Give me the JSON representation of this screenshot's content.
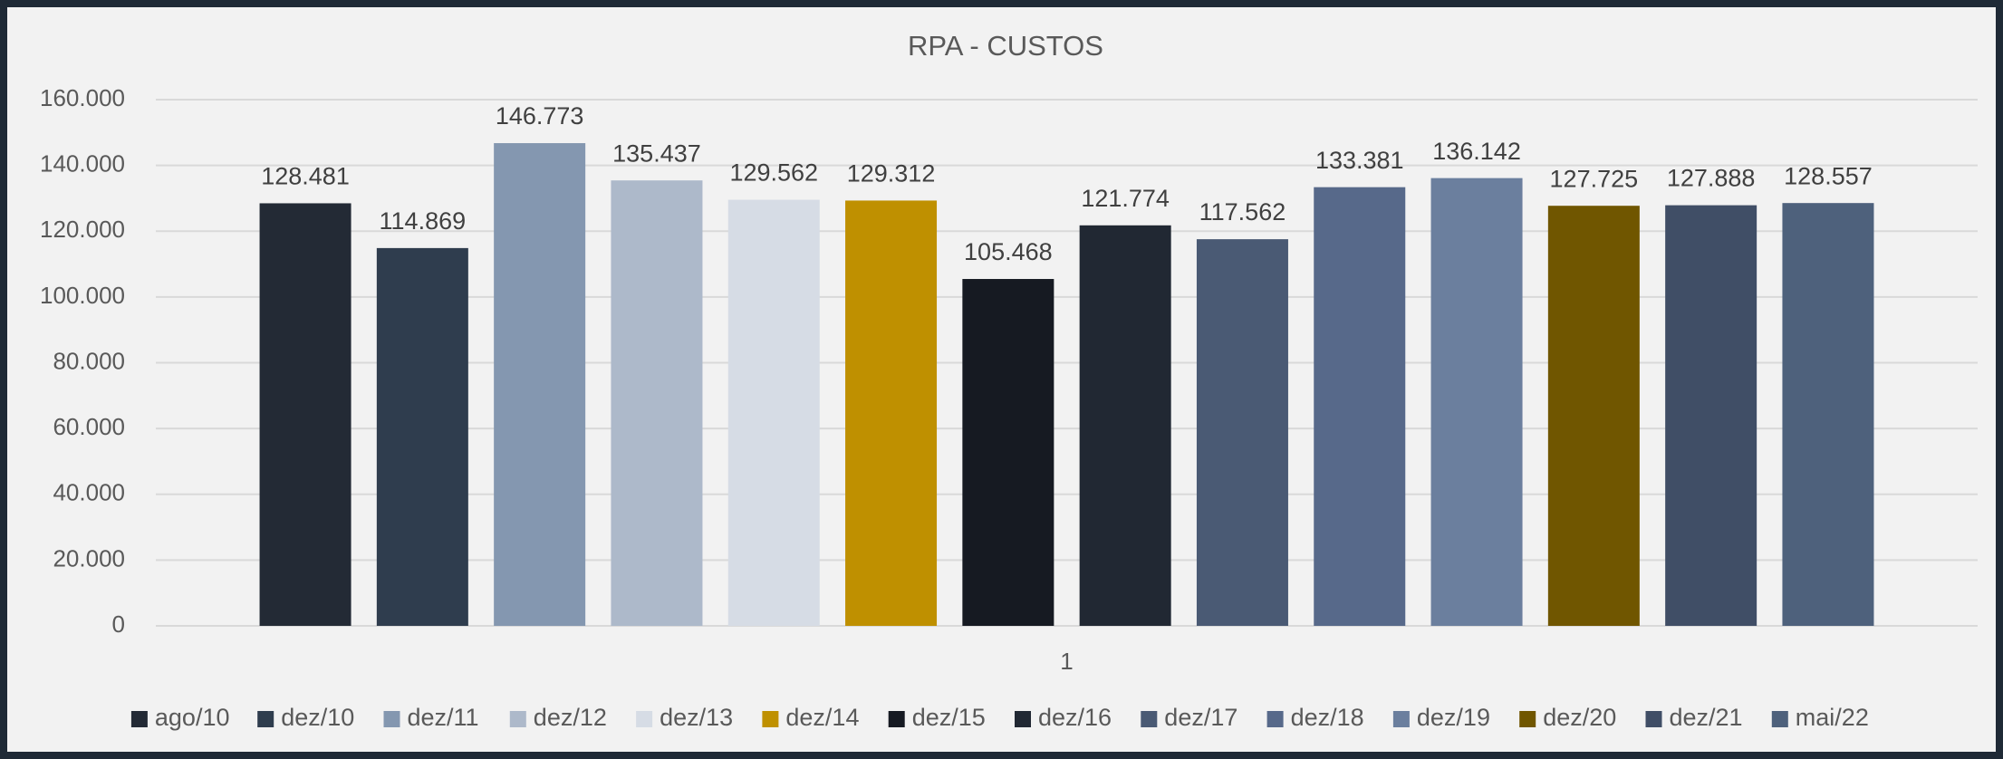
{
  "chart_data": {
    "type": "bar",
    "title": "RPA - CUSTOS",
    "categories": [
      "1"
    ],
    "series": [
      {
        "name": "ago/10",
        "color": "#232a35",
        "values": [
          128481
        ],
        "value_labels": [
          "128.481"
        ]
      },
      {
        "name": "dez/10",
        "color": "#2f3d4e",
        "values": [
          114869
        ],
        "value_labels": [
          "114.869"
        ]
      },
      {
        "name": "dez/11",
        "color": "#8497b0",
        "values": [
          146773
        ],
        "value_labels": [
          "146.773"
        ]
      },
      {
        "name": "dez/12",
        "color": "#adb9ca",
        "values": [
          135437
        ],
        "value_labels": [
          "135.437"
        ]
      },
      {
        "name": "dez/13",
        "color": "#d6dce5",
        "values": [
          129562
        ],
        "value_labels": [
          "129.562"
        ]
      },
      {
        "name": "dez/14",
        "color": "#bf9000",
        "values": [
          129312
        ],
        "value_labels": [
          "129.312"
        ]
      },
      {
        "name": "dez/15",
        "color": "#161a22",
        "values": [
          105468
        ],
        "value_labels": [
          "105.468"
        ]
      },
      {
        "name": "dez/16",
        "color": "#212833",
        "values": [
          121774
        ],
        "value_labels": [
          "121.774"
        ]
      },
      {
        "name": "dez/17",
        "color": "#4a5a74",
        "values": [
          117562
        ],
        "value_labels": [
          "117.562"
        ]
      },
      {
        "name": "dez/18",
        "color": "#57698a",
        "values": [
          133381
        ],
        "value_labels": [
          "133.381"
        ]
      },
      {
        "name": "dez/19",
        "color": "#6b7f9e",
        "values": [
          136142
        ],
        "value_labels": [
          "136.142"
        ]
      },
      {
        "name": "dez/20",
        "color": "#705600",
        "values": [
          127725
        ],
        "value_labels": [
          "127.725"
        ]
      },
      {
        "name": "dez/21",
        "color": "#404e66",
        "values": [
          127888
        ],
        "value_labels": [
          "127.888"
        ]
      },
      {
        "name": "mai/22",
        "color": "#4e617c",
        "values": [
          128557
        ],
        "value_labels": [
          "128.557"
        ]
      }
    ],
    "ylim": [
      0,
      160000
    ],
    "yticks": [
      0,
      {
        "value": 20000,
        "label": "20.000"
      },
      {
        "value": 40000,
        "label": "40.000"
      },
      {
        "value": 60000,
        "label": "60.000"
      },
      {
        "value": 80000,
        "label": "80.000"
      },
      {
        "value": 100000,
        "label": "100.000"
      },
      {
        "value": 120000,
        "label": "120.000"
      },
      {
        "value": 140000,
        "label": "140.000"
      },
      {
        "value": 160000,
        "label": "160.000"
      }
    ],
    "grid": true,
    "legend": "bottom"
  }
}
